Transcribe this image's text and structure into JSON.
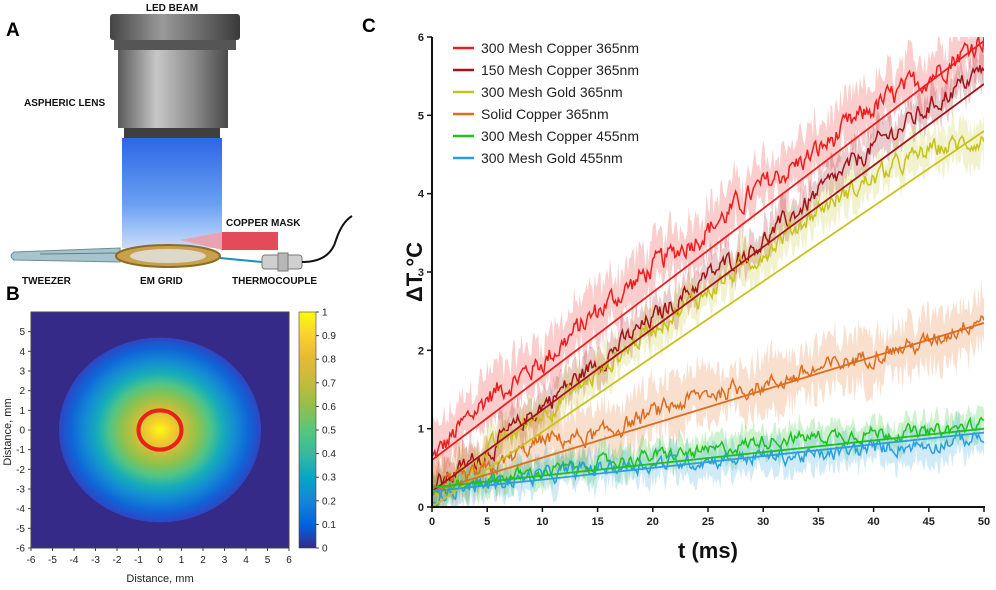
{
  "panel_a": {
    "letter": "A",
    "labels": {
      "led_beam": "LED BEAM",
      "aspheric_lens": "ASPHERIC LENS",
      "copper_mask": "COPPER MASK",
      "tweezer": "TWEEZER",
      "em_grid": "EM GRID",
      "thermocouple": "THERMOCOUPLE"
    }
  },
  "panel_b": {
    "letter": "B",
    "colors": {
      "low": "#352a87",
      "high": "#f9fb0e",
      "ring": "#e8211b"
    }
  },
  "panel_c": {
    "letter": "C",
    "colors": {
      "copper365": "#ee1c1c",
      "mesh150": "#a4141b",
      "gold365": "#c6c21e",
      "solid365": "#df6d1f",
      "copper455": "#1ec21e",
      "gold455": "#2a9fe0"
    }
  },
  "chart_data": [
    {
      "type": "heatmap",
      "title": "",
      "xlabel": "Distance, mm",
      "ylabel": "Distance, mm",
      "xlim": [
        -6,
        6
      ],
      "ylim": [
        -6,
        6
      ],
      "x_ticks": [
        "-6",
        "-5",
        "-4",
        "-3",
        "-2",
        "-1",
        "0",
        "1",
        "2",
        "3",
        "4",
        "5",
        "6"
      ],
      "y_ticks": [
        "5",
        "4",
        "3",
        "2",
        "1",
        "0",
        "-1",
        "-2",
        "-3",
        "-4",
        "-5",
        "-6"
      ],
      "colorbar_ticks": [
        "1",
        "0.9",
        "0.8",
        "0.7",
        "0.6",
        "0.5",
        "0.4",
        "0.3",
        "0.2",
        "0.1",
        "0"
      ],
      "colorbar_range": [
        0,
        1
      ],
      "ring": {
        "center_mm": [
          0,
          0
        ],
        "radius_mm": 1.0
      },
      "profile": {
        "type": "radial_gaussian",
        "sigma_mm": 2.2,
        "peak": 1.0,
        "cutoff_radius_mm": 4.7
      }
    },
    {
      "type": "line",
      "title": "",
      "xlabel": "t (ms)",
      "ylabel": "ΔT °C",
      "xlim": [
        0,
        50
      ],
      "ylim": [
        0,
        6
      ],
      "x_ticks": [
        "0",
        "5",
        "10",
        "15",
        "20",
        "25",
        "30",
        "35",
        "40",
        "45",
        "50"
      ],
      "y_ticks": [
        "0",
        "1",
        "2",
        "3",
        "4",
        "5",
        "6"
      ],
      "legend_position": "top-left",
      "series": [
        {
          "name": "300 Mesh Copper 365nm",
          "key": "copper365",
          "fit_start": 0.6,
          "fit_end": 5.95,
          "x": [
            0,
            5,
            10,
            15,
            20,
            25,
            30,
            35,
            40,
            45,
            50
          ],
          "values": [
            0.6,
            1.4,
            1.85,
            2.5,
            3.05,
            3.55,
            4.1,
            4.55,
            5.1,
            5.5,
            6.0
          ]
        },
        {
          "name": "150 Mesh Copper 365nm",
          "key": "mesh150",
          "fit_start": 0.2,
          "fit_end": 5.4,
          "x": [
            0,
            5,
            10,
            15,
            20,
            25,
            30,
            35,
            40,
            45,
            50
          ],
          "values": [
            0.25,
            0.7,
            1.3,
            1.85,
            2.4,
            2.95,
            3.4,
            4.0,
            4.6,
            5.1,
            5.6
          ]
        },
        {
          "name": "300 Mesh Gold 365nm",
          "key": "gold365",
          "fit_start": 0.0,
          "fit_end": 4.8,
          "x": [
            0,
            5,
            10,
            15,
            20,
            25,
            30,
            35,
            40,
            45,
            50
          ],
          "values": [
            0.1,
            0.7,
            1.2,
            1.7,
            2.3,
            2.75,
            3.25,
            3.8,
            4.2,
            4.55,
            4.7
          ]
        },
        {
          "name": "Solid Copper 365nm",
          "key": "solid365",
          "fit_start": 0.2,
          "fit_end": 2.35,
          "x": [
            0,
            5,
            10,
            15,
            20,
            25,
            30,
            35,
            40,
            45,
            50
          ],
          "values": [
            0.2,
            0.45,
            0.85,
            0.9,
            1.2,
            1.45,
            1.55,
            1.75,
            1.95,
            2.1,
            2.45
          ]
        },
        {
          "name": "300 Mesh Copper 455nm",
          "key": "copper455",
          "fit_start": 0.25,
          "fit_end": 1.0,
          "x": [
            0,
            5,
            10,
            15,
            20,
            25,
            30,
            35,
            40,
            45,
            50
          ],
          "values": [
            0.2,
            0.35,
            0.45,
            0.55,
            0.65,
            0.7,
            0.85,
            0.9,
            0.95,
            0.95,
            1.05
          ]
        },
        {
          "name": "300 Mesh Gold 455nm",
          "key": "gold455",
          "fit_start": 0.2,
          "fit_end": 0.95,
          "x": [
            0,
            5,
            10,
            15,
            20,
            25,
            30,
            35,
            40,
            45,
            50
          ],
          "values": [
            0.15,
            0.3,
            0.4,
            0.5,
            0.55,
            0.6,
            0.65,
            0.65,
            0.75,
            0.8,
            0.9
          ]
        }
      ]
    }
  ]
}
